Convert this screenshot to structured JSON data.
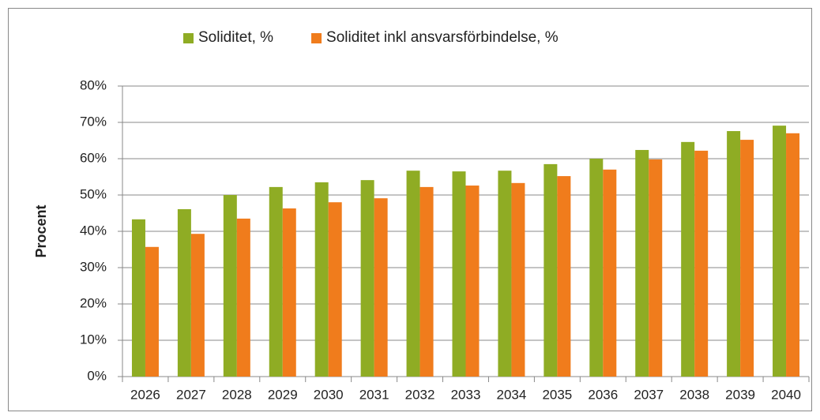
{
  "chart_data": {
    "type": "bar",
    "y_label": "Procent",
    "categories": [
      "2026",
      "2027",
      "2028",
      "2029",
      "2030",
      "2031",
      "2032",
      "2033",
      "2034",
      "2035",
      "2036",
      "2037",
      "2038",
      "2039",
      "2040"
    ],
    "series": [
      {
        "name": "Soliditet, %",
        "color": "#8fac24",
        "values": [
          43.3,
          46.1,
          50,
          52.2,
          53.5,
          54.1,
          56.7,
          56.5,
          56.7,
          58.5,
          60,
          62.4,
          64.6,
          67.6,
          69.1
        ]
      },
      {
        "name": "Soliditet inkl ansvarsförbindelse, %",
        "color": "#f07c1c",
        "values": [
          35.7,
          39.3,
          43.5,
          46.3,
          48,
          49.1,
          52.2,
          52.6,
          53.3,
          55.2,
          57,
          59.8,
          62.2,
          65.2,
          67
        ]
      }
    ],
    "ylim": [
      0,
      80
    ],
    "yticks": [
      {
        "value": 0,
        "label": "0%"
      },
      {
        "value": 10,
        "label": "10%"
      },
      {
        "value": 20,
        "label": "20%"
      },
      {
        "value": 30,
        "label": "30%"
      },
      {
        "value": 40,
        "label": "40%"
      },
      {
        "value": 50,
        "label": "50%"
      },
      {
        "value": 60,
        "label": "60%"
      },
      {
        "value": 70,
        "label": "70%"
      },
      {
        "value": 80,
        "label": "80%"
      }
    ],
    "grid": true,
    "legend": "top"
  }
}
